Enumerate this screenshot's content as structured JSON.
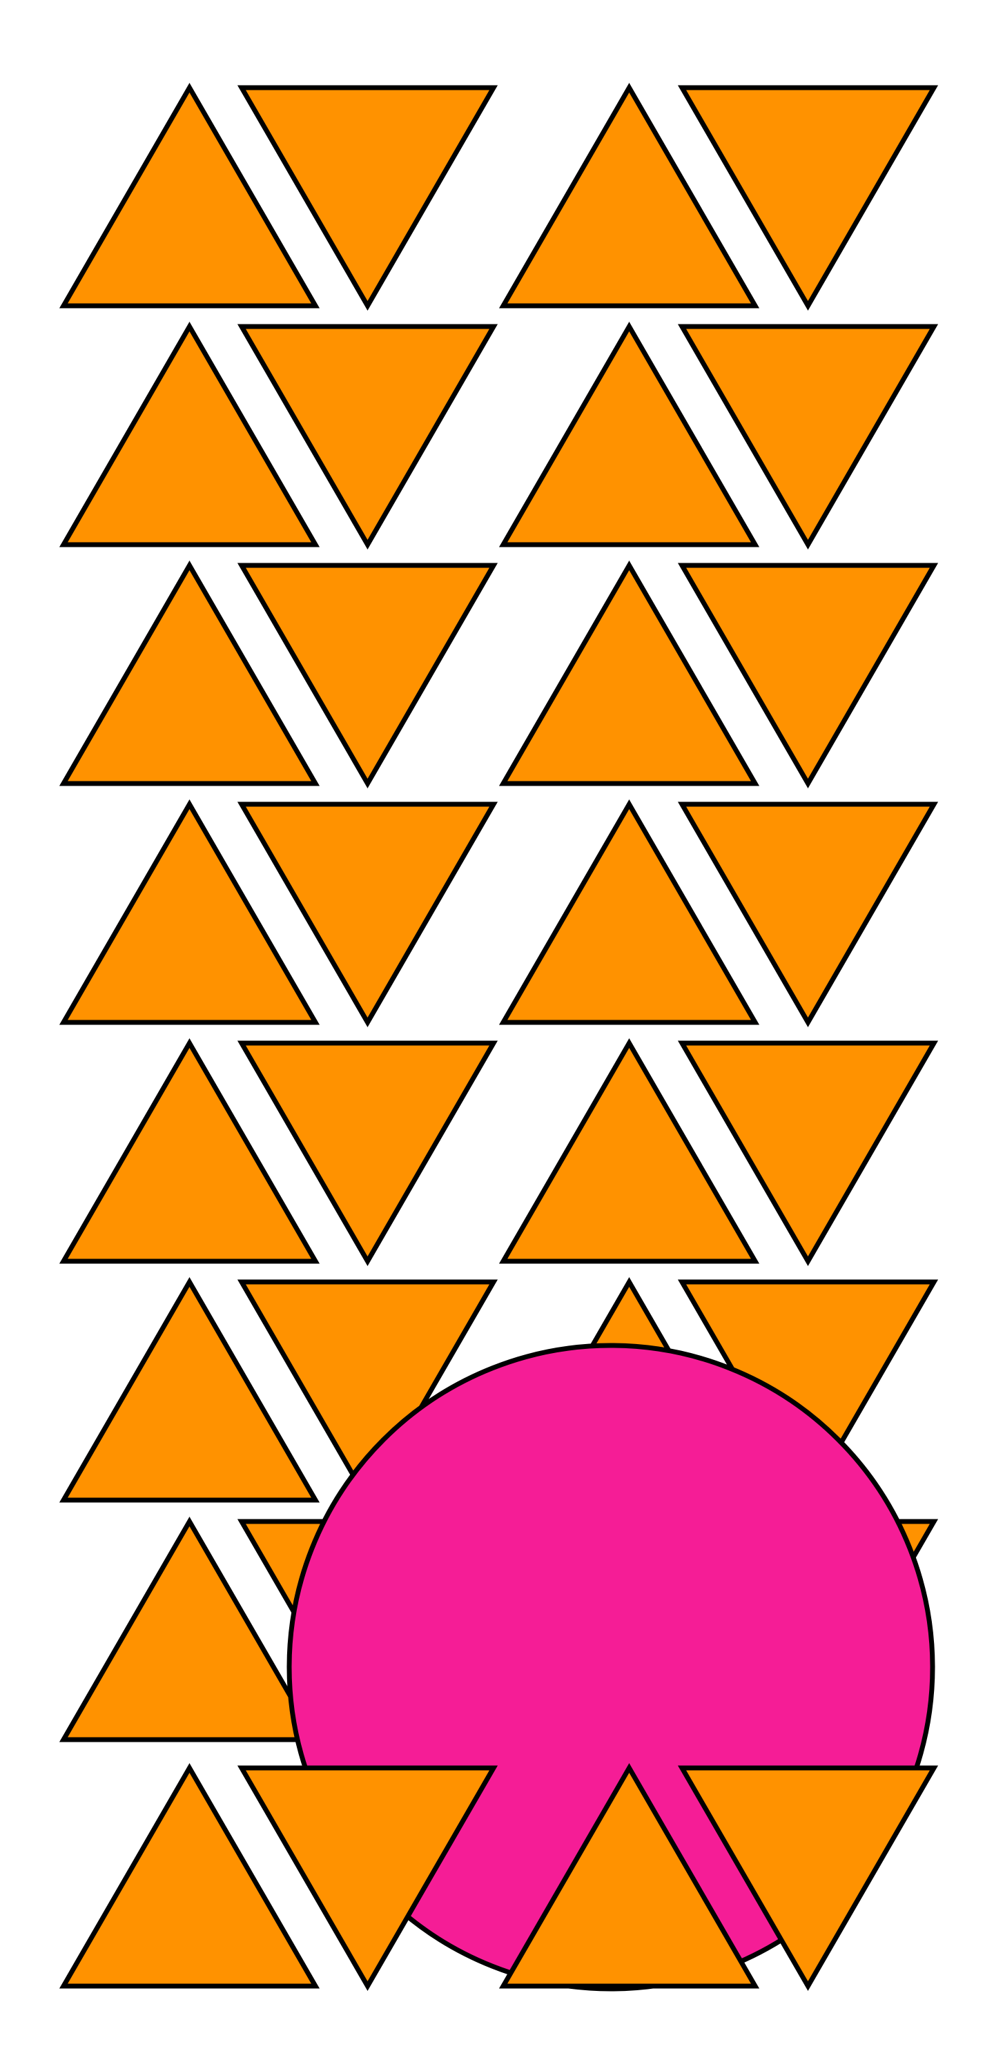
{
  "palette": {
    "background": "#ffffff",
    "triangle_fill": "#ff9200",
    "circle_fill": "#f51d96",
    "outline": "#000000"
  },
  "shapes": {
    "triangle_rows": 8,
    "triangles_per_row": 4,
    "row_pattern": [
      "up",
      "down",
      "up",
      "down"
    ],
    "circle_count": 1
  }
}
